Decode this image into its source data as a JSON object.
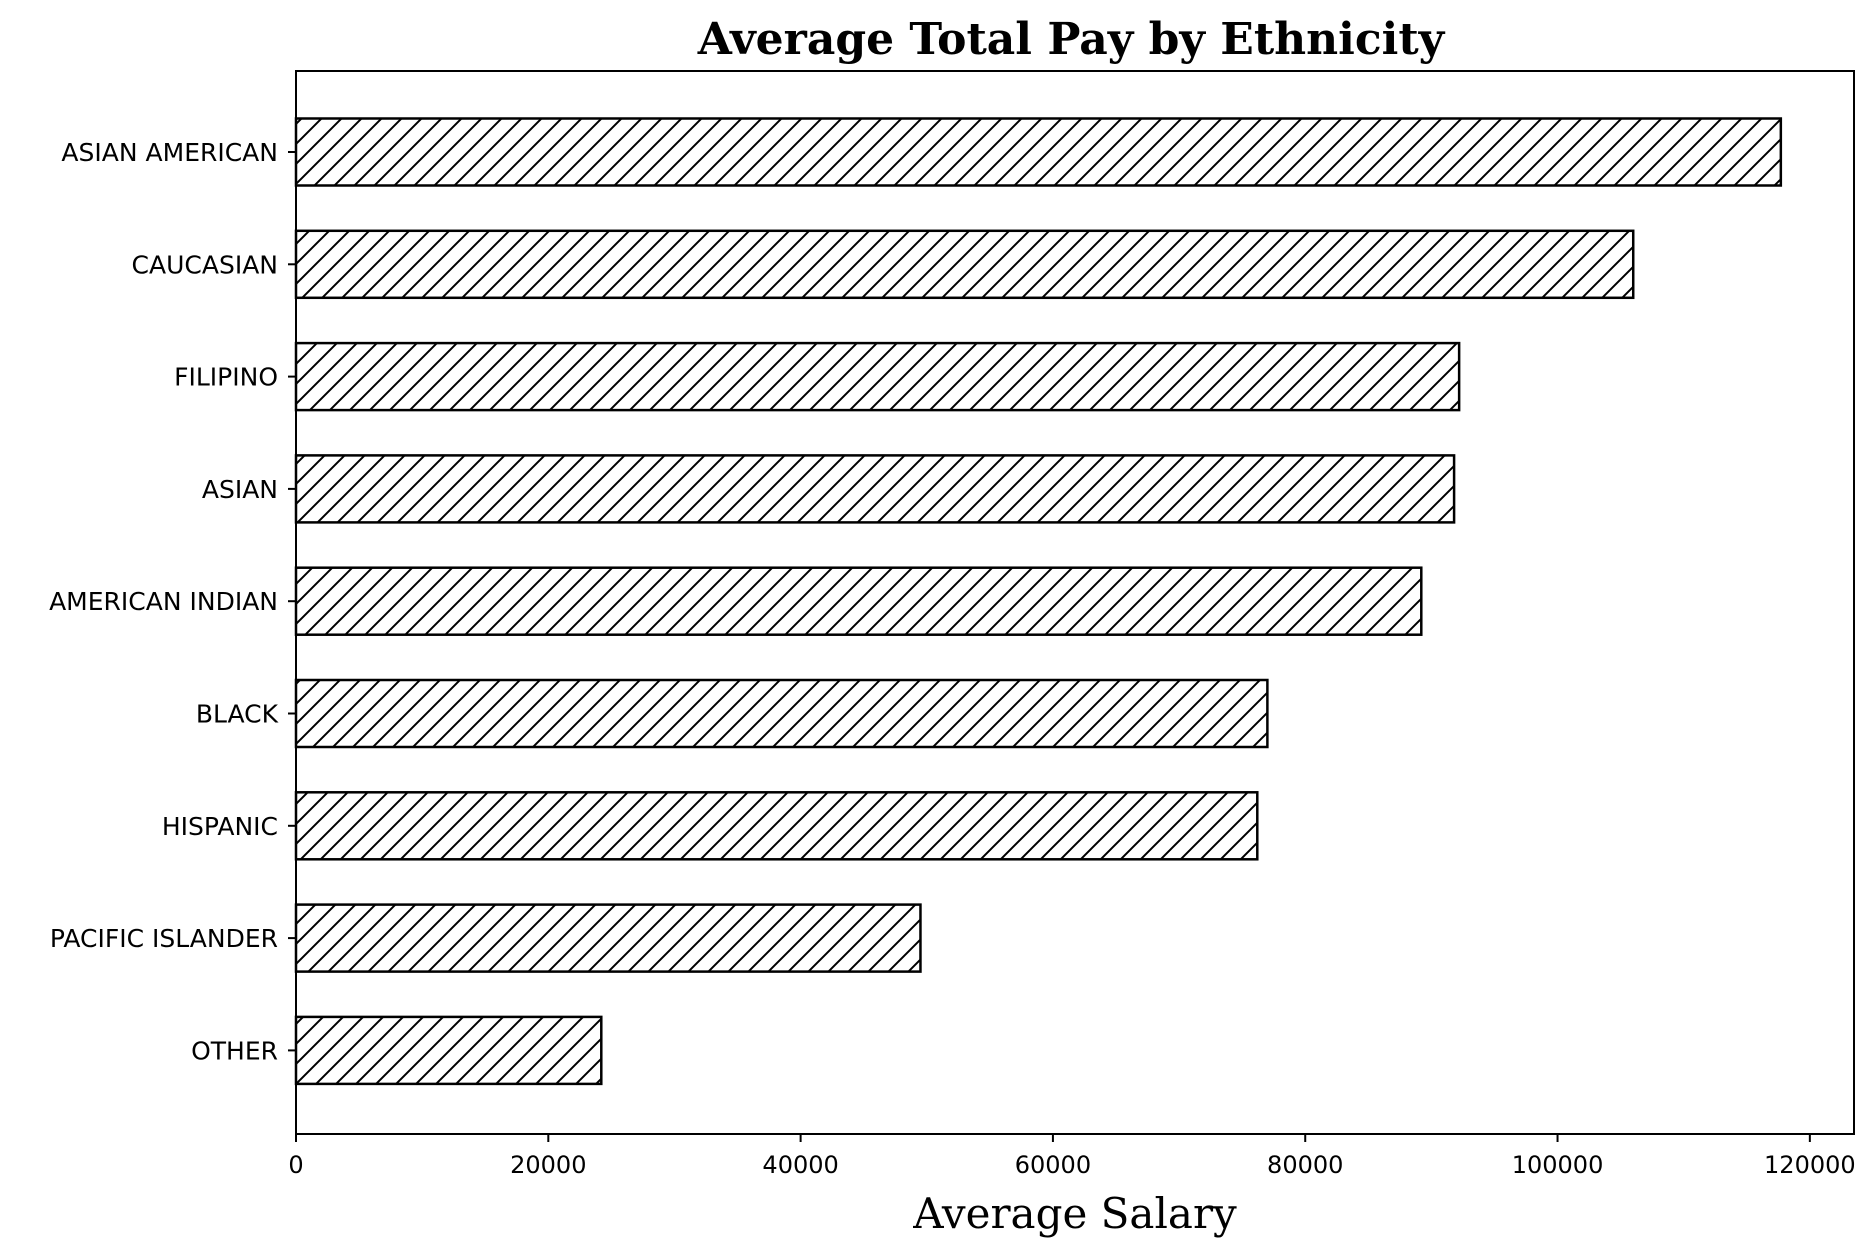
{
  "chart_data": {
    "type": "bar",
    "orientation": "horizontal",
    "title": "Average Total Pay by Ethnicity",
    "xlabel": "Average Salary",
    "ylabel": "",
    "categories": [
      "ASIAN AMERICAN",
      "CAUCASIAN",
      "FILIPINO",
      "ASIAN",
      "AMERICAN INDIAN",
      "BLACK",
      "HISPANIC",
      "PACIFIC ISLANDER",
      "OTHER"
    ],
    "values": [
      117700,
      106000,
      92200,
      91800,
      89200,
      77000,
      76200,
      49500,
      24200
    ],
    "xlim": [
      0,
      123500
    ],
    "xticks": [
      "0",
      "20000",
      "40000",
      "60000",
      "80000",
      "100000",
      "120000"
    ],
    "bar_fill": "#ffffff",
    "bar_edge": "#000000",
    "bar_hatch": "diagonal",
    "grid": false,
    "legend": "none"
  }
}
